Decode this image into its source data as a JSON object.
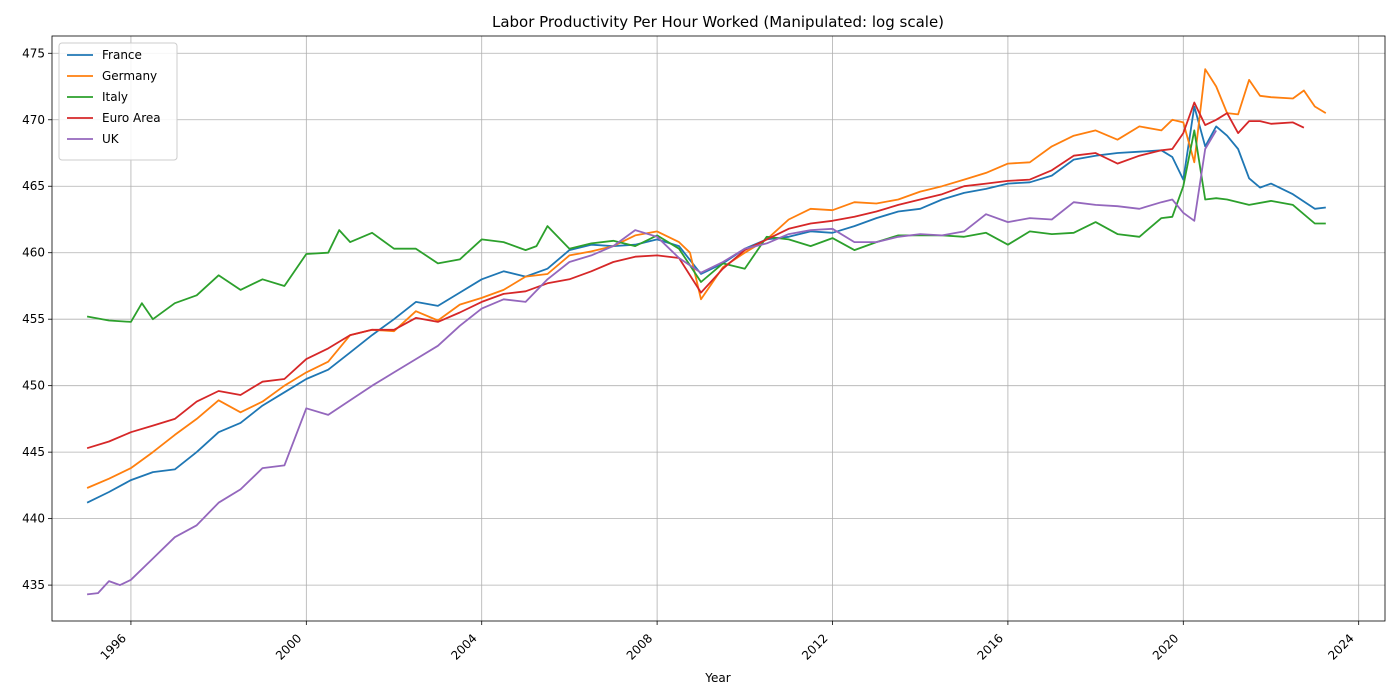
{
  "chart_data": {
    "type": "line",
    "title": "Labor Productivity Per Hour Worked (Manipulated: log scale)",
    "xlabel": "Year",
    "ylabel": "",
    "xlim": [
      1994.2,
      2024.6
    ],
    "ylim": [
      432.3,
      476.3
    ],
    "x_ticks": [
      1996,
      2000,
      2004,
      2008,
      2012,
      2016,
      2020,
      2024
    ],
    "y_ticks": [
      435,
      440,
      445,
      450,
      455,
      460,
      465,
      470,
      475
    ],
    "grid": true,
    "legend_position": "top-left",
    "series": [
      {
        "name": "France",
        "color": "#1f77b4",
        "x": [
          1995.0,
          1995.5,
          1996.0,
          1996.5,
          1997.0,
          1997.5,
          1998.0,
          1998.5,
          1999.0,
          1999.5,
          2000.0,
          2000.5,
          2001.0,
          2001.5,
          2002.0,
          2002.5,
          2003.0,
          2003.5,
          2004.0,
          2004.5,
          2005.0,
          2005.5,
          2006.0,
          2006.5,
          2007.0,
          2007.5,
          2008.0,
          2008.5,
          2009.0,
          2009.5,
          2010.0,
          2010.5,
          2011.0,
          2011.5,
          2012.0,
          2012.5,
          2013.0,
          2013.5,
          2014.0,
          2014.5,
          2015.0,
          2015.5,
          2016.0,
          2016.5,
          2017.0,
          2017.5,
          2018.0,
          2018.5,
          2019.0,
          2019.5,
          2019.75,
          2020.0,
          2020.25,
          2020.5,
          2020.75,
          2021.0,
          2021.25,
          2021.5,
          2021.75,
          2022.0,
          2022.5,
          2023.0,
          2023.25
        ],
        "values": [
          441.2,
          442.0,
          442.9,
          443.5,
          443.7,
          445.0,
          446.5,
          447.2,
          448.5,
          449.5,
          450.5,
          451.2,
          452.5,
          453.8,
          455.0,
          456.3,
          456.0,
          457.0,
          458.0,
          458.6,
          458.2,
          458.8,
          460.2,
          460.6,
          460.5,
          460.6,
          461.0,
          460.5,
          458.4,
          459.2,
          460.3,
          461.0,
          461.2,
          461.6,
          461.5,
          462.0,
          462.6,
          463.1,
          463.3,
          464.0,
          464.5,
          464.8,
          465.2,
          465.3,
          465.8,
          467.0,
          467.3,
          467.5,
          467.6,
          467.7,
          467.2,
          465.5,
          471.0,
          468.0,
          469.5,
          468.8,
          467.8,
          465.6,
          464.9,
          465.2,
          464.4,
          463.3,
          463.4
        ]
      },
      {
        "name": "Germany",
        "color": "#ff7f0e",
        "x": [
          1995.0,
          1995.5,
          1996.0,
          1996.5,
          1997.0,
          1997.5,
          1998.0,
          1998.5,
          1999.0,
          1999.5,
          2000.0,
          2000.5,
          2001.0,
          2001.5,
          2002.0,
          2002.5,
          2003.0,
          2003.5,
          2004.0,
          2004.5,
          2005.0,
          2005.5,
          2006.0,
          2006.5,
          2007.0,
          2007.5,
          2008.0,
          2008.5,
          2008.75,
          2009.0,
          2009.5,
          2010.0,
          2010.5,
          2011.0,
          2011.5,
          2012.0,
          2012.5,
          2013.0,
          2013.5,
          2014.0,
          2014.5,
          2015.0,
          2015.5,
          2016.0,
          2016.5,
          2017.0,
          2017.5,
          2018.0,
          2018.5,
          2019.0,
          2019.5,
          2019.75,
          2020.0,
          2020.25,
          2020.5,
          2020.75,
          2021.0,
          2021.25,
          2021.5,
          2021.75,
          2022.0,
          2022.5,
          2022.75,
          2023.0,
          2023.25
        ],
        "values": [
          442.3,
          443.0,
          443.8,
          445.0,
          446.3,
          447.5,
          448.9,
          448.0,
          448.8,
          450.0,
          451.0,
          451.8,
          453.8,
          454.2,
          454.1,
          455.6,
          454.9,
          456.1,
          456.6,
          457.2,
          458.2,
          458.4,
          459.8,
          460.1,
          460.5,
          461.3,
          461.6,
          460.8,
          460.0,
          456.5,
          458.9,
          460.0,
          461.0,
          462.5,
          463.3,
          463.2,
          463.8,
          463.7,
          464.0,
          464.6,
          465.0,
          465.5,
          466.0,
          466.7,
          466.8,
          468.0,
          468.8,
          469.2,
          468.5,
          469.5,
          469.2,
          470.0,
          469.8,
          466.8,
          473.8,
          472.5,
          470.5,
          470.4,
          473.0,
          471.8,
          471.7,
          471.6,
          472.2,
          471.0,
          470.5
        ]
      },
      {
        "name": "Italy",
        "color": "#2ca02c",
        "x": [
          1995.0,
          1995.5,
          1996.0,
          1996.25,
          1996.5,
          1997.0,
          1997.5,
          1998.0,
          1998.5,
          1999.0,
          1999.5,
          2000.0,
          2000.5,
          2000.75,
          2001.0,
          2001.5,
          2002.0,
          2002.5,
          2003.0,
          2003.5,
          2004.0,
          2004.5,
          2005.0,
          2005.25,
          2005.5,
          2006.0,
          2006.5,
          2007.0,
          2007.5,
          2008.0,
          2008.5,
          2009.0,
          2009.5,
          2010.0,
          2010.5,
          2011.0,
          2011.5,
          2012.0,
          2012.5,
          2013.0,
          2013.5,
          2014.0,
          2014.5,
          2015.0,
          2015.5,
          2016.0,
          2016.5,
          2017.0,
          2017.5,
          2018.0,
          2018.5,
          2019.0,
          2019.5,
          2019.75,
          2020.0,
          2020.25,
          2020.5,
          2020.75,
          2021.0,
          2021.5,
          2022.0,
          2022.5,
          2023.0,
          2023.25
        ],
        "values": [
          455.2,
          454.9,
          454.8,
          456.2,
          455.0,
          456.2,
          456.8,
          458.3,
          457.2,
          458.0,
          457.5,
          459.9,
          460.0,
          461.7,
          460.8,
          461.5,
          460.3,
          460.3,
          459.2,
          459.5,
          461.0,
          460.8,
          460.2,
          460.5,
          462.0,
          460.3,
          460.7,
          460.9,
          460.5,
          461.3,
          460.3,
          457.8,
          459.2,
          458.8,
          461.2,
          461.0,
          460.5,
          461.1,
          460.2,
          460.8,
          461.3,
          461.3,
          461.3,
          461.2,
          461.5,
          460.6,
          461.6,
          461.4,
          461.5,
          462.3,
          461.4,
          461.2,
          462.6,
          462.7,
          465.0,
          469.2,
          464.0,
          464.1,
          464.0,
          463.6,
          463.9,
          463.6,
          462.2,
          462.2
        ]
      },
      {
        "name": "Euro Area",
        "color": "#d62728",
        "x": [
          1995.0,
          1995.5,
          1996.0,
          1996.5,
          1997.0,
          1997.5,
          1998.0,
          1998.5,
          1999.0,
          1999.5,
          2000.0,
          2000.5,
          2001.0,
          2001.5,
          2002.0,
          2002.5,
          2003.0,
          2003.5,
          2004.0,
          2004.5,
          2005.0,
          2005.5,
          2006.0,
          2006.5,
          2007.0,
          2007.5,
          2008.0,
          2008.5,
          2009.0,
          2009.5,
          2010.0,
          2010.5,
          2011.0,
          2011.5,
          2012.0,
          2012.5,
          2013.0,
          2013.5,
          2014.0,
          2014.5,
          2015.0,
          2015.5,
          2016.0,
          2016.5,
          2017.0,
          2017.5,
          2018.0,
          2018.5,
          2019.0,
          2019.5,
          2019.75,
          2020.0,
          2020.25,
          2020.5,
          2020.75,
          2021.0,
          2021.25,
          2021.5,
          2021.75,
          2022.0,
          2022.5,
          2022.75
        ],
        "values": [
          445.3,
          445.8,
          446.5,
          447.0,
          447.5,
          448.8,
          449.6,
          449.3,
          450.3,
          450.5,
          452.0,
          452.8,
          453.8,
          454.2,
          454.2,
          455.1,
          454.8,
          455.5,
          456.3,
          456.9,
          457.1,
          457.7,
          458.0,
          458.6,
          459.3,
          459.7,
          459.8,
          459.6,
          457.0,
          458.8,
          460.2,
          461.0,
          461.8,
          462.2,
          462.4,
          462.7,
          463.1,
          463.6,
          464.0,
          464.4,
          465.0,
          465.2,
          465.4,
          465.5,
          466.2,
          467.3,
          467.5,
          466.7,
          467.3,
          467.7,
          467.8,
          469.0,
          471.3,
          469.6,
          470.0,
          470.5,
          469.0,
          469.9,
          469.9,
          469.7,
          469.8,
          469.4
        ]
      },
      {
        "name": "UK",
        "color": "#9467bd",
        "x": [
          1995.0,
          1995.25,
          1995.5,
          1995.75,
          1996.0,
          1996.5,
          1997.0,
          1997.5,
          1998.0,
          1998.5,
          1999.0,
          1999.5,
          2000.0,
          2000.5,
          2001.0,
          2001.5,
          2002.0,
          2002.5,
          2003.0,
          2003.5,
          2004.0,
          2004.5,
          2005.0,
          2005.5,
          2006.0,
          2006.5,
          2007.0,
          2007.5,
          2008.0,
          2008.5,
          2009.0,
          2009.5,
          2010.0,
          2010.5,
          2011.0,
          2011.5,
          2012.0,
          2012.5,
          2013.0,
          2013.5,
          2014.0,
          2014.5,
          2015.0,
          2015.5,
          2016.0,
          2016.5,
          2017.0,
          2017.5,
          2018.0,
          2018.5,
          2019.0,
          2019.5,
          2019.75,
          2020.0,
          2020.25,
          2020.5,
          2020.75
        ],
        "values": [
          434.3,
          434.4,
          435.3,
          435.0,
          435.4,
          437.0,
          438.6,
          439.5,
          441.2,
          442.2,
          443.8,
          444.0,
          448.3,
          447.8,
          448.9,
          450.0,
          451.0,
          452.0,
          453.0,
          454.5,
          455.8,
          456.5,
          456.3,
          458.0,
          459.3,
          459.8,
          460.5,
          461.7,
          461.2,
          459.6,
          458.5,
          459.3,
          460.3,
          460.7,
          461.4,
          461.7,
          461.8,
          460.8,
          460.8,
          461.2,
          461.4,
          461.3,
          461.6,
          462.9,
          462.3,
          462.6,
          462.5,
          463.8,
          463.6,
          463.5,
          463.3,
          463.8,
          464.0,
          463.0,
          462.4,
          467.8,
          469.2
        ]
      }
    ]
  }
}
